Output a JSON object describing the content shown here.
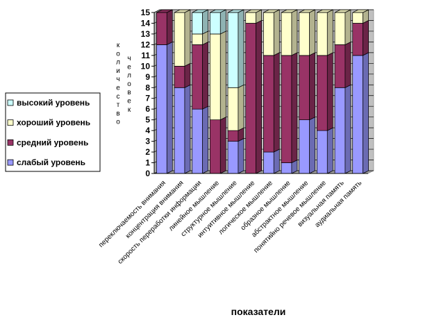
{
  "chart_data": {
    "type": "bar",
    "stacked": true,
    "style": "3d",
    "xlabel": "показатели",
    "ylabel_parts": [
      "количество",
      "человек"
    ],
    "ylim": [
      0,
      15
    ],
    "yticks": [
      0,
      1,
      2,
      3,
      4,
      5,
      6,
      7,
      8,
      9,
      10,
      11,
      12,
      13,
      14,
      15
    ],
    "grid": true,
    "legend_position": "left",
    "categories": [
      "переключаемость внимания",
      "концентрация внимания",
      "скорость переработки информации",
      "линейное мышление",
      "структурное мышление",
      "интуитивное мышление",
      "логическое мышление",
      "образное мышление",
      "абстрактное мышление",
      "понятийно речевое мышление",
      "визуальная память",
      "аудиальная память"
    ],
    "series": [
      {
        "name": "слабый уровень",
        "color": "#9999ff",
        "values": [
          12,
          8,
          6,
          0,
          3,
          0,
          2,
          1,
          5,
          4,
          8,
          11
        ]
      },
      {
        "name": "средний уровень",
        "color": "#993366",
        "values": [
          3,
          2,
          6,
          5,
          1,
          14,
          9,
          10,
          6,
          7,
          4,
          3
        ]
      },
      {
        "name": "хороший уровень",
        "color": "#ffffcc",
        "values": [
          0,
          5,
          1,
          8,
          4,
          1,
          4,
          4,
          4,
          4,
          3,
          1
        ]
      },
      {
        "name": "высокий уровень",
        "color": "#ccffff",
        "values": [
          0,
          0,
          2,
          2,
          7,
          0,
          0,
          0,
          0,
          0,
          0,
          0
        ]
      }
    ],
    "legend_order": [
      "высокий уровень",
      "хороший уровень",
      "средний уровень",
      "слабый уровень"
    ]
  }
}
